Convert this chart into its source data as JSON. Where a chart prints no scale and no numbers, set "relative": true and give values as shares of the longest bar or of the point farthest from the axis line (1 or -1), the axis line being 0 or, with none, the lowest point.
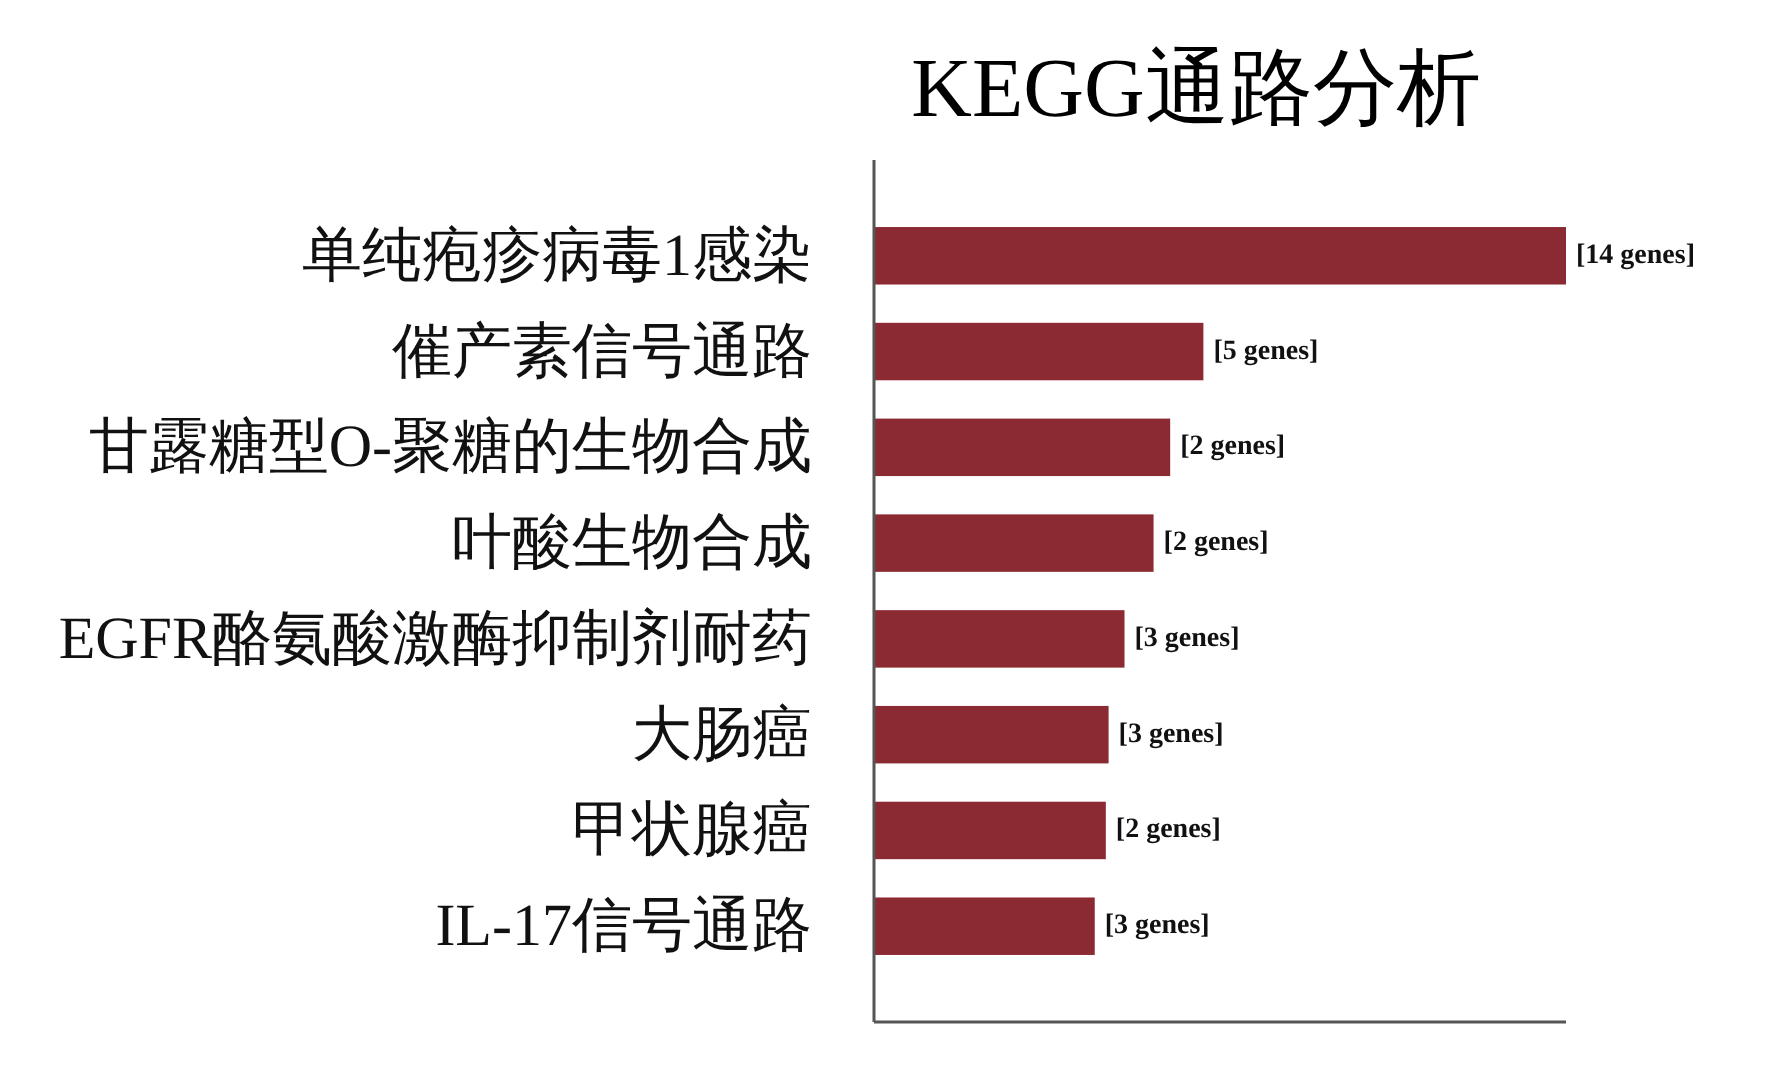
{
  "chart_data": {
    "type": "bar",
    "orientation": "horizontal",
    "relative": true,
    "title": "KEGG通路分析",
    "categories": [
      "单纯疱疹病毒1感染",
      "催产素信号通路",
      "甘露糖型O-聚糖的生物合成",
      "叶酸生物合成",
      "EGFR酪氨酸激酶抑制剂耐药",
      "大肠癌",
      "甲状腺癌",
      "IL-17信号通路"
    ],
    "values": [
      1,
      0.476,
      0.428,
      0.404,
      0.362,
      0.339,
      0.335,
      0.319
    ],
    "color": "#8b2a32",
    "annotations": [
      {
        "text": "[14 genes]",
        "x": 1,
        "y": "单纯疱疹病毒1感染"
      },
      {
        "text": "[5 genes]",
        "x": 0.476,
        "y": "催产素信号通路"
      },
      {
        "text": "[2 genes]",
        "x": 0.428,
        "y": "甘露糖型O-聚糖的生物合成"
      },
      {
        "text": "[2 genes]",
        "x": 0.404,
        "y": "叶酸生物合成"
      },
      {
        "text": "[3 genes]",
        "x": 0.362,
        "y": "EGFR酪氨酸激酶抑制剂耐药"
      },
      {
        "text": "[3 genes]",
        "x": 0.339,
        "y": "大肠癌"
      },
      {
        "text": "[2 genes]",
        "x": 0.335,
        "y": "甲状腺癌"
      },
      {
        "text": "[3 genes]",
        "x": 0.319,
        "y": "IL-17信号通路"
      }
    ]
  }
}
